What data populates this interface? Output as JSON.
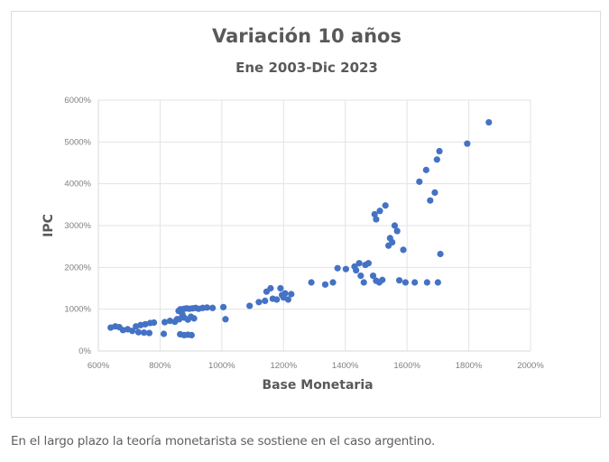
{
  "caption": "En el largo plazo la teoría monetarista se sostiene en el caso argentino.",
  "colors": {
    "marker": "#4472c4",
    "grid": "#e3e3e3",
    "title": "#595959",
    "tick": "#7f7f7f"
  },
  "chart_data": {
    "type": "scatter",
    "title": "Variación 10 años",
    "subtitle": "Ene 2003-Dic 2023",
    "xlabel": "Base Monetaria",
    "ylabel": "IPC",
    "xlim": [
      600,
      2000
    ],
    "ylim": [
      0,
      6000
    ],
    "x_ticks": [
      600,
      800,
      1000,
      1200,
      1400,
      1600,
      1800,
      2000
    ],
    "y_ticks": [
      0,
      1000,
      2000,
      3000,
      4000,
      5000,
      6000
    ],
    "x_tick_labels": [
      "600%",
      "800%",
      "1000%",
      "1200%",
      "1400%",
      "1600%",
      "1800%",
      "2000%"
    ],
    "y_tick_labels": [
      "0%",
      "1000%",
      "2000%",
      "3000%",
      "4000%",
      "5000%",
      "6000%"
    ],
    "grid": true,
    "legend": "none",
    "series": [
      {
        "name": "IPC vs Base Monetaria",
        "points": [
          [
            640,
            560
          ],
          [
            655,
            590
          ],
          [
            668,
            570
          ],
          [
            680,
            500
          ],
          [
            695,
            520
          ],
          [
            710,
            480
          ],
          [
            722,
            590
          ],
          [
            737,
            620
          ],
          [
            752,
            640
          ],
          [
            768,
            670
          ],
          [
            780,
            680
          ],
          [
            730,
            450
          ],
          [
            748,
            440
          ],
          [
            765,
            430
          ],
          [
            812,
            410
          ],
          [
            815,
            690
          ],
          [
            832,
            720
          ],
          [
            848,
            700
          ],
          [
            855,
            760
          ],
          [
            860,
            960
          ],
          [
            866,
            1000
          ],
          [
            872,
            880
          ],
          [
            878,
            1010
          ],
          [
            886,
            1020
          ],
          [
            895,
            1010
          ],
          [
            905,
            1020
          ],
          [
            915,
            1030
          ],
          [
            925,
            1010
          ],
          [
            938,
            1030
          ],
          [
            952,
            1040
          ],
          [
            970,
            1030
          ],
          [
            1005,
            1050
          ],
          [
            1012,
            760
          ],
          [
            862,
            760
          ],
          [
            878,
            800
          ],
          [
            890,
            750
          ],
          [
            900,
            820
          ],
          [
            910,
            780
          ],
          [
            865,
            400
          ],
          [
            878,
            380
          ],
          [
            890,
            390
          ],
          [
            902,
            380
          ],
          [
            1090,
            1080
          ],
          [
            1120,
            1170
          ],
          [
            1140,
            1200
          ],
          [
            1145,
            1420
          ],
          [
            1158,
            1500
          ],
          [
            1165,
            1250
          ],
          [
            1178,
            1230
          ],
          [
            1190,
            1500
          ],
          [
            1195,
            1340
          ],
          [
            1200,
            1280
          ],
          [
            1205,
            1380
          ],
          [
            1215,
            1230
          ],
          [
            1225,
            1360
          ],
          [
            1290,
            1640
          ],
          [
            1335,
            1590
          ],
          [
            1360,
            1640
          ],
          [
            1375,
            1980
          ],
          [
            1402,
            1960
          ],
          [
            1430,
            2020
          ],
          [
            1435,
            1930
          ],
          [
            1445,
            2100
          ],
          [
            1450,
            1800
          ],
          [
            1460,
            1640
          ],
          [
            1465,
            2060
          ],
          [
            1475,
            2100
          ],
          [
            1490,
            1800
          ],
          [
            1500,
            1680
          ],
          [
            1510,
            1640
          ],
          [
            1520,
            1700
          ],
          [
            1495,
            3270
          ],
          [
            1500,
            3150
          ],
          [
            1512,
            3350
          ],
          [
            1530,
            3480
          ],
          [
            1540,
            2520
          ],
          [
            1545,
            2700
          ],
          [
            1552,
            2600
          ],
          [
            1560,
            3000
          ],
          [
            1568,
            2870
          ],
          [
            1575,
            1690
          ],
          [
            1588,
            2420
          ],
          [
            1595,
            1640
          ],
          [
            1625,
            1640
          ],
          [
            1665,
            1640
          ],
          [
            1700,
            1640
          ],
          [
            1640,
            4050
          ],
          [
            1662,
            4330
          ],
          [
            1675,
            3600
          ],
          [
            1690,
            3790
          ],
          [
            1697,
            4580
          ],
          [
            1705,
            4780
          ],
          [
            1708,
            2320
          ],
          [
            1795,
            4960
          ],
          [
            1865,
            5470
          ]
        ]
      }
    ]
  }
}
